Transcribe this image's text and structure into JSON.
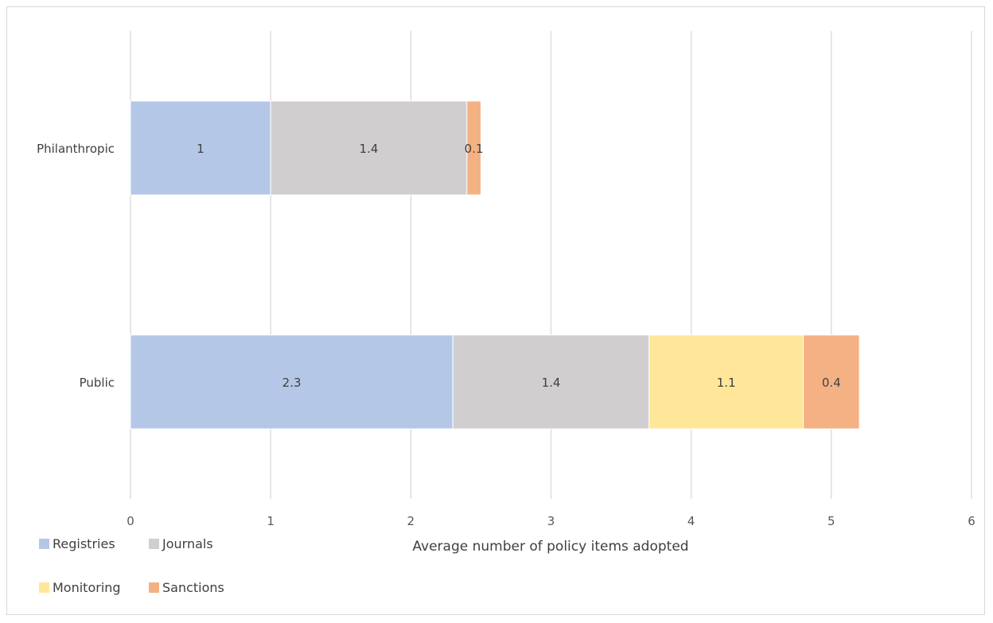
{
  "chart_data": {
    "type": "bar",
    "orientation": "horizontal",
    "stacked": true,
    "categories": [
      "Philanthropic",
      "Public"
    ],
    "series": [
      {
        "name": "Registries",
        "color": "#b4c7e7",
        "values": [
          1,
          2.3
        ]
      },
      {
        "name": "Journals",
        "color": "#d0cece",
        "values": [
          1.4,
          1.4
        ]
      },
      {
        "name": "Monitoring",
        "color": "#ffe699",
        "values": [
          0,
          1.1
        ]
      },
      {
        "name": "Sanctions",
        "color": "#f4b183",
        "values": [
          0.1,
          0.4
        ]
      }
    ],
    "data_labels": [
      [
        "1",
        "1.4",
        "",
        "0.1"
      ],
      [
        "2.3",
        "1.4",
        "1.1",
        "0.4"
      ]
    ],
    "xlabel": "Average number of policy items adopted",
    "ylabel": "",
    "xlim": [
      0,
      6
    ],
    "x_ticks": [
      "0",
      "1",
      "2",
      "3",
      "4",
      "5",
      "6"
    ],
    "grid": "vertical",
    "legend_position": "bottom-left"
  }
}
